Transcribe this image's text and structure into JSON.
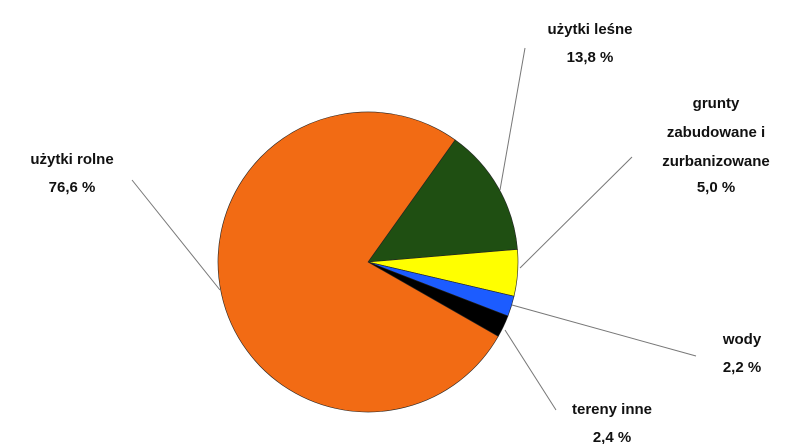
{
  "chart_data": {
    "type": "pie",
    "categories": [
      "użytki rolne",
      "użytki leśne",
      "grunty zabudowane i zurbanizowane",
      "wody",
      "tereny inne"
    ],
    "values": [
      76.6,
      13.8,
      5.0,
      2.2,
      2.4
    ],
    "value_labels": [
      "76,6 %",
      "13,8 %",
      "5,0 %",
      "2,2 %",
      "2,4 %"
    ],
    "colors": [
      "#f26b14",
      "#1f4f12",
      "#ffff00",
      "#1c5cff",
      "#000000"
    ]
  }
}
